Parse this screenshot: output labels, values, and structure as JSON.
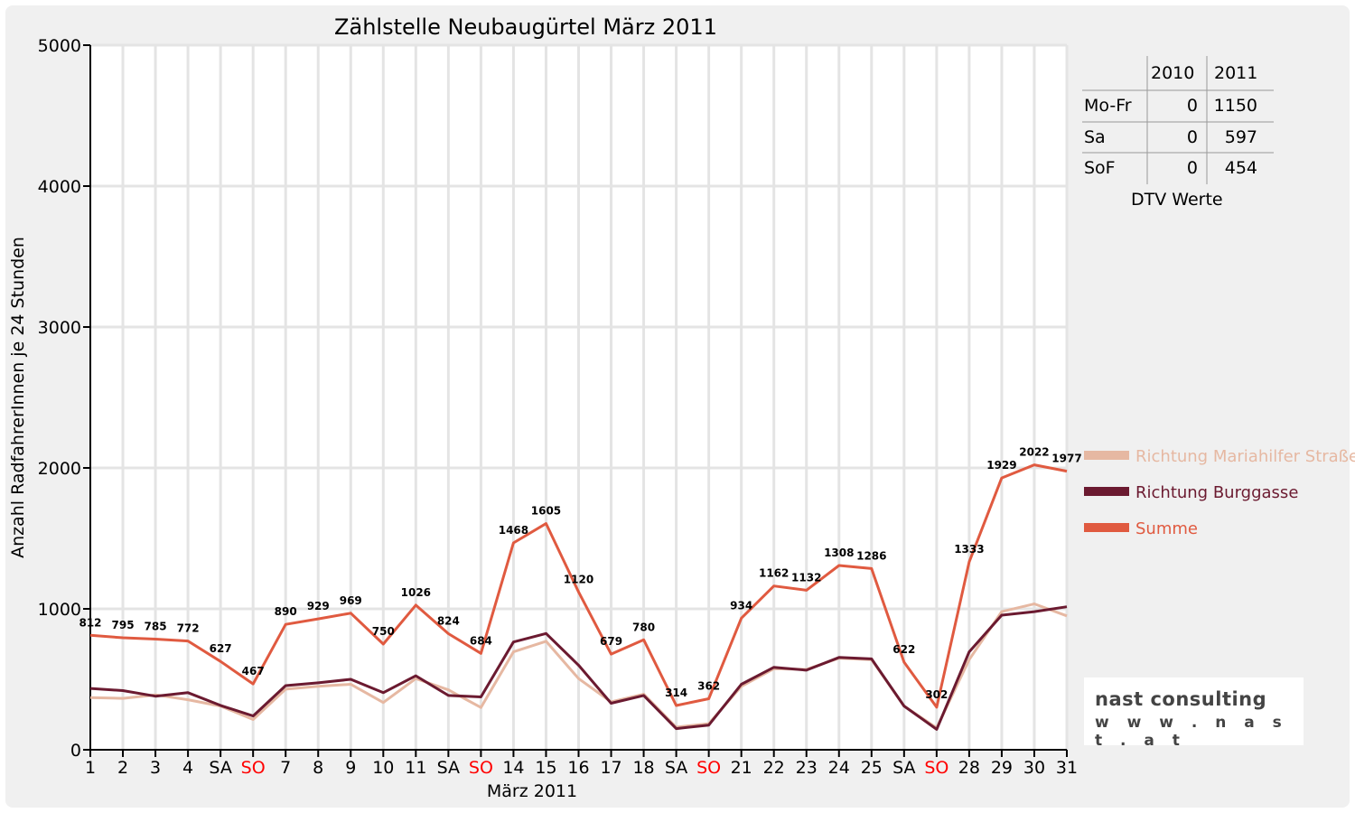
{
  "chart_data": {
    "type": "line",
    "title": "Zählstelle Neubaugürtel März 2011",
    "xlabel": "März 2011",
    "ylabel": "Anzahl RadfahrerInnen je 24 Stunden",
    "ylim": [
      0,
      5000
    ],
    "yticks": [
      "0",
      "1000",
      "2000",
      "3000",
      "4000",
      "5000"
    ],
    "categories": [
      "1",
      "2",
      "3",
      "4",
      "SA",
      "SO",
      "7",
      "8",
      "9",
      "10",
      "11",
      "SA",
      "SO",
      "14",
      "15",
      "16",
      "17",
      "18",
      "SA",
      "SO",
      "21",
      "22",
      "23",
      "24",
      "25",
      "SA",
      "SO",
      "28",
      "29",
      "30",
      "31"
    ],
    "weekend_color": "#ff0000",
    "weekend_labels": [
      "SO"
    ],
    "grid": true,
    "legend_position": "right",
    "series": [
      {
        "name": "Richtung Mariahilfer Straße",
        "color": "#e6b8a2",
        "values": [
          370,
          365,
          390,
          355,
          310,
          215,
          430,
          450,
          465,
          335,
          505,
          425,
          300,
          695,
          770,
          505,
          340,
          395,
          160,
          185,
          450,
          575,
          570,
          650,
          640,
          310,
          155,
          640,
          980,
          1035,
          950
        ]
      },
      {
        "name": "Richtung Burggasse",
        "color": "#6b1a30",
        "values": [
          435,
          420,
          380,
          405,
          315,
          240,
          455,
          475,
          500,
          405,
          525,
          385,
          375,
          765,
          825,
          600,
          330,
          385,
          150,
          175,
          465,
          585,
          565,
          655,
          645,
          310,
          145,
          695,
          955,
          980,
          1015
        ]
      },
      {
        "name": "Summe",
        "color": "#e05a40",
        "values": [
          812,
          795,
          785,
          772,
          627,
          467,
          890,
          929,
          969,
          750,
          1026,
          824,
          684,
          1468,
          1605,
          1120,
          679,
          780,
          314,
          362,
          934,
          1162,
          1132,
          1308,
          1286,
          622,
          302,
          1333,
          1929,
          2022,
          1977
        ]
      }
    ]
  },
  "dtv_table": {
    "headers": [
      "2010",
      "2011"
    ],
    "rows": [
      {
        "label": "Mo-Fr",
        "v2010": "0",
        "v2011": "1150"
      },
      {
        "label": "Sa",
        "v2010": "0",
        "v2011": "597"
      },
      {
        "label": "SoF",
        "v2010": "0",
        "v2011": "454"
      }
    ],
    "caption": "DTV Werte"
  },
  "logo": {
    "name": "nast consulting",
    "url": "w w w . n a s t . a t"
  }
}
